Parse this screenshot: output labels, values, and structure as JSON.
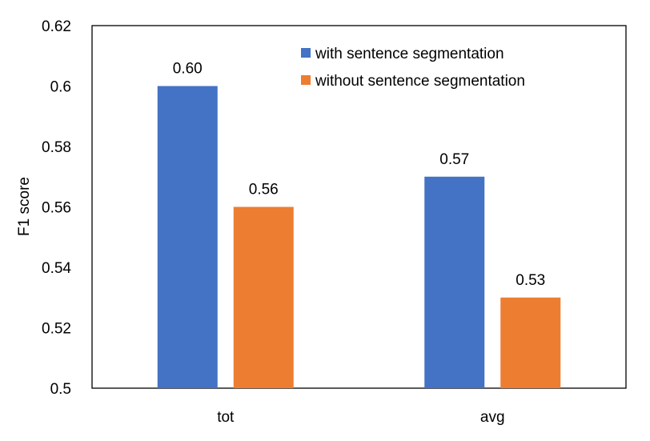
{
  "chart_data": {
    "type": "bar",
    "title": "",
    "xlabel": "",
    "ylabel": "F1 score",
    "ylim": [
      0.5,
      0.62
    ],
    "yticks": [
      "0.5",
      "0.52",
      "0.54",
      "0.56",
      "0.58",
      "0.6",
      "0.62"
    ],
    "grid": false,
    "legend_position": "top-right",
    "categories": [
      "tot",
      "avg"
    ],
    "series": [
      {
        "name": "with sentence segmentation",
        "color": "#4472C4",
        "values": [
          0.6,
          0.57
        ],
        "labels": [
          "0.60",
          "0.57"
        ]
      },
      {
        "name": "without sentence segmentation",
        "color": "#ED7D31",
        "values": [
          0.56,
          0.53
        ],
        "labels": [
          "0.56",
          "0.53"
        ]
      }
    ]
  }
}
